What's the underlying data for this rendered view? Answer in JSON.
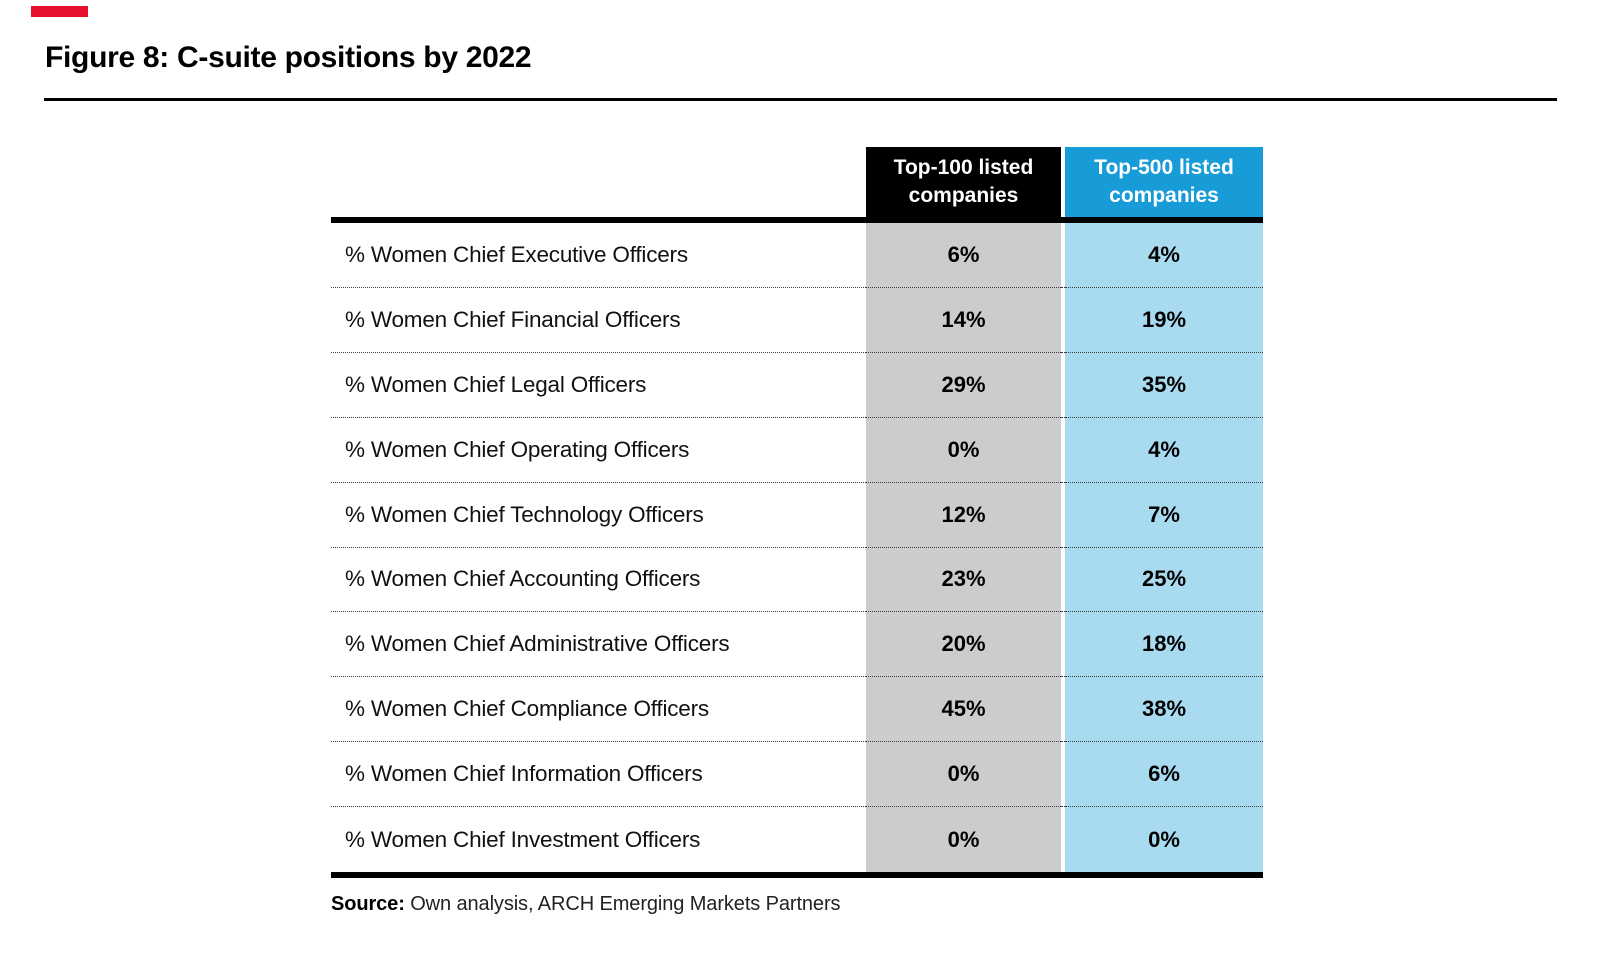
{
  "palette": {
    "accent_red": "#e8112d",
    "header_black": "#000000",
    "header_blue": "#189cd8",
    "column_gray": "#cccccc",
    "column_light_blue": "#a8dbf0"
  },
  "figure": {
    "title": "Figure 8: C-suite positions by 2022"
  },
  "table": {
    "col_headers": [
      {
        "label": "Top-100 listed companies"
      },
      {
        "label": "Top-500 listed companies"
      }
    ],
    "rows": [
      {
        "label": "% Women Chief Executive Officers",
        "top100": "6%",
        "top500": "4%"
      },
      {
        "label": "% Women Chief Financial Officers",
        "top100": "14%",
        "top500": "19%"
      },
      {
        "label": "% Women Chief Legal Officers",
        "top100": "29%",
        "top500": "35%"
      },
      {
        "label": "% Women Chief Operating Officers",
        "top100": "0%",
        "top500": "4%"
      },
      {
        "label": "% Women Chief Technology Officers",
        "top100": "12%",
        "top500": "7%"
      },
      {
        "label": "% Women Chief Accounting Officers",
        "top100": "23%",
        "top500": "25%"
      },
      {
        "label": "% Women Chief Administrative Officers",
        "top100": "20%",
        "top500": "18%"
      },
      {
        "label": "% Women Chief Compliance Officers",
        "top100": "45%",
        "top500": "38%"
      },
      {
        "label": "% Women Chief Information Officers",
        "top100": "0%",
        "top500": "6%"
      },
      {
        "label": "% Women Chief Investment Officers",
        "top100": "0%",
        "top500": "0%"
      }
    ]
  },
  "source": {
    "label": "Source:",
    "text": " Own analysis, ARCH Emerging Markets Partners"
  },
  "chart_data": {
    "type": "table",
    "title": "Figure 8: C-suite positions by 2022",
    "columns": [
      "Top-100 listed companies",
      "Top-500 listed companies"
    ],
    "categories": [
      "% Women Chief Executive Officers",
      "% Women Chief Financial Officers",
      "% Women Chief Legal Officers",
      "% Women Chief Operating Officers",
      "% Women Chief Technology Officers",
      "% Women Chief Accounting Officers",
      "% Women Chief Administrative Officers",
      "% Women Chief Compliance Officers",
      "% Women Chief Information Officers",
      "% Women Chief Investment Officers"
    ],
    "series": [
      {
        "name": "Top-100 listed companies",
        "values": [
          6,
          14,
          29,
          0,
          12,
          23,
          20,
          45,
          0,
          0
        ]
      },
      {
        "name": "Top-500 listed companies",
        "values": [
          4,
          19,
          35,
          4,
          7,
          25,
          18,
          38,
          6,
          0
        ]
      }
    ],
    "unit": "%",
    "source": "Source: Own analysis, ARCH Emerging Markets Partners"
  }
}
